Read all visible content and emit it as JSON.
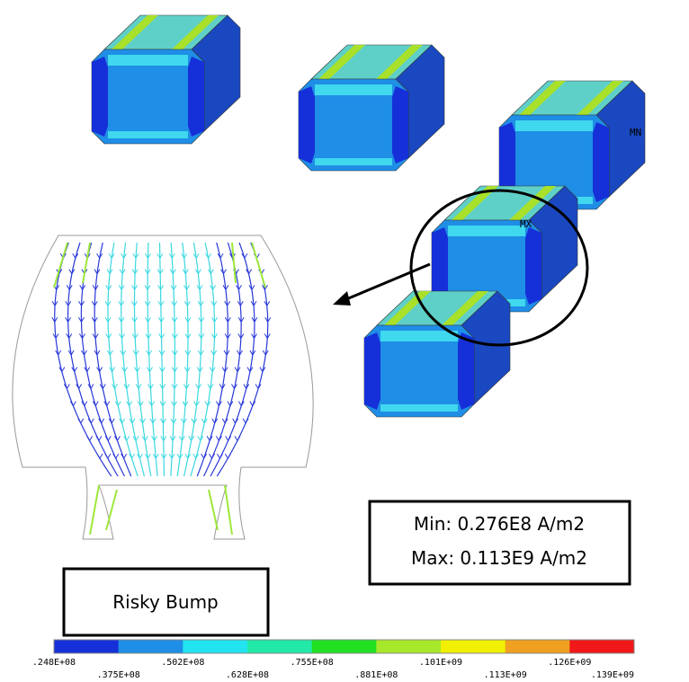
{
  "annotations": {
    "min_marker": "MN",
    "max_marker": "MX"
  },
  "result_box": {
    "min": "Min: 0.276E8 A/m2",
    "max": "Max: 0.113E9 A/m2"
  },
  "callout": "Risky Bump",
  "legend": {
    "colors": [
      "#1530d8",
      "#1e8ee6",
      "#22e4f0",
      "#22e8a8",
      "#22e022",
      "#a8e82a",
      "#f0f000",
      "#f0a020",
      "#f01818"
    ],
    "labels": [
      ".248E+08",
      ".375E+08",
      ".502E+08",
      ".628E+08",
      ".755E+08",
      ".881E+08",
      ".101E+09",
      ".113E+09",
      ".126E+09",
      ".139E+09"
    ]
  }
}
